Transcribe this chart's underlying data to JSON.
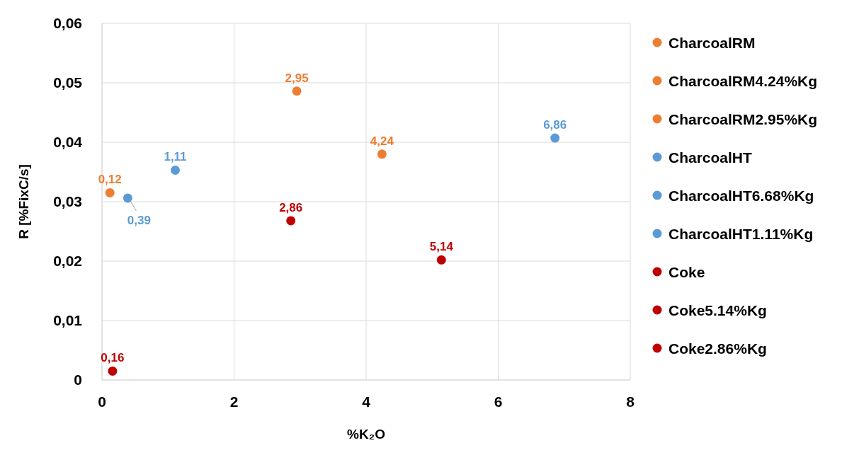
{
  "chart_data": {
    "type": "scatter",
    "xlabel": "%K₂O",
    "ylabel": "R [%FixC/s]",
    "xlim": [
      0,
      8
    ],
    "xticks": [
      0,
      2,
      4,
      6,
      8
    ],
    "ylim": [
      0,
      0.06
    ],
    "yticks": [
      {
        "value": 0,
        "label": "0"
      },
      {
        "value": 0.01,
        "label": "0,01"
      },
      {
        "value": 0.02,
        "label": "0,02"
      },
      {
        "value": 0.03,
        "label": "0,03"
      },
      {
        "value": 0.04,
        "label": "0,04"
      },
      {
        "value": 0.05,
        "label": "0,05"
      },
      {
        "value": 0.06,
        "label": "0,06"
      }
    ],
    "grid": true,
    "legend": "right",
    "marker": "circle",
    "series": [
      {
        "name": "CharcoalRM",
        "color": "#ed7d31",
        "x": [
          0.12
        ],
        "values": [
          0.0315
        ]
      },
      {
        "name": "CharcoalRM4.24%Kg",
        "color": "#ed7d31",
        "x": [
          4.24
        ],
        "values": [
          0.038
        ]
      },
      {
        "name": "CharcoalRM2.95%Kg",
        "color": "#ed7d31",
        "x": [
          2.95
        ],
        "values": [
          0.0486
        ]
      },
      {
        "name": "CharcoalHT",
        "color": "#5b9bd5",
        "x": [
          0.39
        ],
        "values": [
          0.0306
        ]
      },
      {
        "name": "CharcoalHT6.68%Kg",
        "color": "#5b9bd5",
        "x": [
          6.86
        ],
        "values": [
          0.0407
        ]
      },
      {
        "name": "CharcoalHT1.11%Kg",
        "color": "#5b9bd5",
        "x": [
          1.11
        ],
        "values": [
          0.0353
        ]
      },
      {
        "name": "Coke",
        "color": "#c00000",
        "x": [
          0.16
        ],
        "values": [
          0.0015
        ]
      },
      {
        "name": "Coke5.14%Kg",
        "color": "#c00000",
        "x": [
          5.14
        ],
        "values": [
          0.0202
        ]
      },
      {
        "name": "Coke2.86%Kg",
        "color": "#c00000",
        "x": [
          2.86
        ],
        "values": [
          0.0268
        ]
      }
    ],
    "annotations": [
      {
        "text": "0,12",
        "x": 0.12,
        "y": 0.0315
      },
      {
        "text": "4,24",
        "x": 4.24,
        "y": 0.038
      },
      {
        "text": "2,95",
        "x": 2.95,
        "y": 0.0486
      },
      {
        "text": "0,39",
        "x": 0.39,
        "y": 0.0306
      },
      {
        "text": "6,86",
        "x": 6.86,
        "y": 0.0407
      },
      {
        "text": "1,11",
        "x": 1.11,
        "y": 0.0353
      },
      {
        "text": "0,16",
        "x": 0.16,
        "y": 0.0015
      },
      {
        "text": "5,14",
        "x": 5.14,
        "y": 0.0202
      },
      {
        "text": "2,86",
        "x": 2.86,
        "y": 0.0268
      }
    ]
  }
}
